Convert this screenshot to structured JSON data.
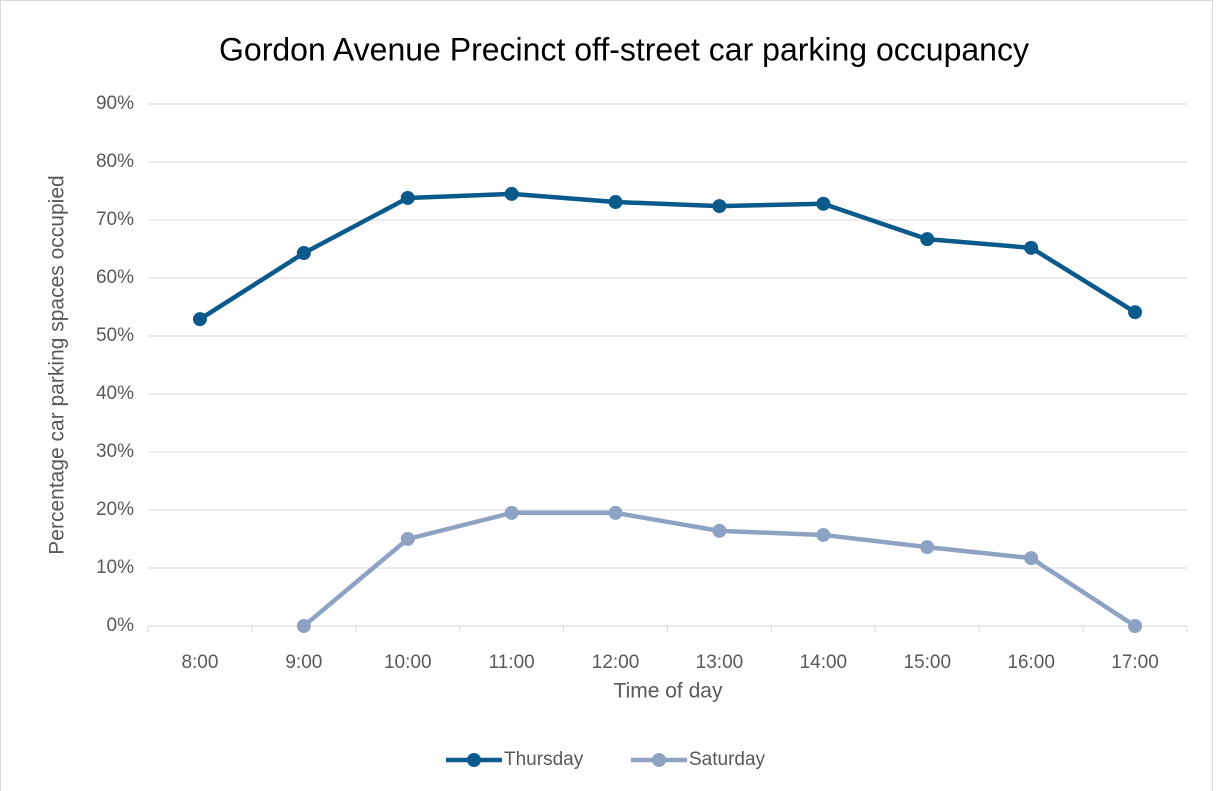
{
  "chart_data": {
    "type": "line",
    "title": "Gordon Avenue Precinct off-street car parking occupancy",
    "x_label": "Time of day",
    "y_label": "Percentage car parking spaces occupied",
    "categories": [
      "8:00",
      "9:00",
      "10:00",
      "11:00",
      "12:00",
      "13:00",
      "14:00",
      "15:00",
      "16:00",
      "17:00"
    ],
    "series": [
      {
        "name": "Thursday",
        "color": "#0b5a8c",
        "values": [
          52.9,
          64.3,
          73.8,
          74.5,
          73.1,
          72.4,
          72.8,
          66.7,
          65.2,
          54.1
        ]
      },
      {
        "name": "Saturday",
        "color": "#8ea2c3",
        "values": [
          null,
          0,
          15.0,
          19.5,
          19.5,
          16.4,
          15.7,
          13.6,
          11.7,
          0
        ]
      }
    ],
    "ylim": [
      0,
      90
    ],
    "yticks": [
      {
        "value": 0,
        "label": "0%"
      },
      {
        "value": 10,
        "label": "10%"
      },
      {
        "value": 20,
        "label": "20%"
      },
      {
        "value": 30,
        "label": "30%"
      },
      {
        "value": 40,
        "label": "40%"
      },
      {
        "value": 50,
        "label": "50%"
      },
      {
        "value": 60,
        "label": "60%"
      },
      {
        "value": 70,
        "label": "70%"
      },
      {
        "value": 80,
        "label": "80%"
      },
      {
        "value": 90,
        "label": "90%"
      }
    ],
    "grid": true,
    "legend": "bottom"
  }
}
